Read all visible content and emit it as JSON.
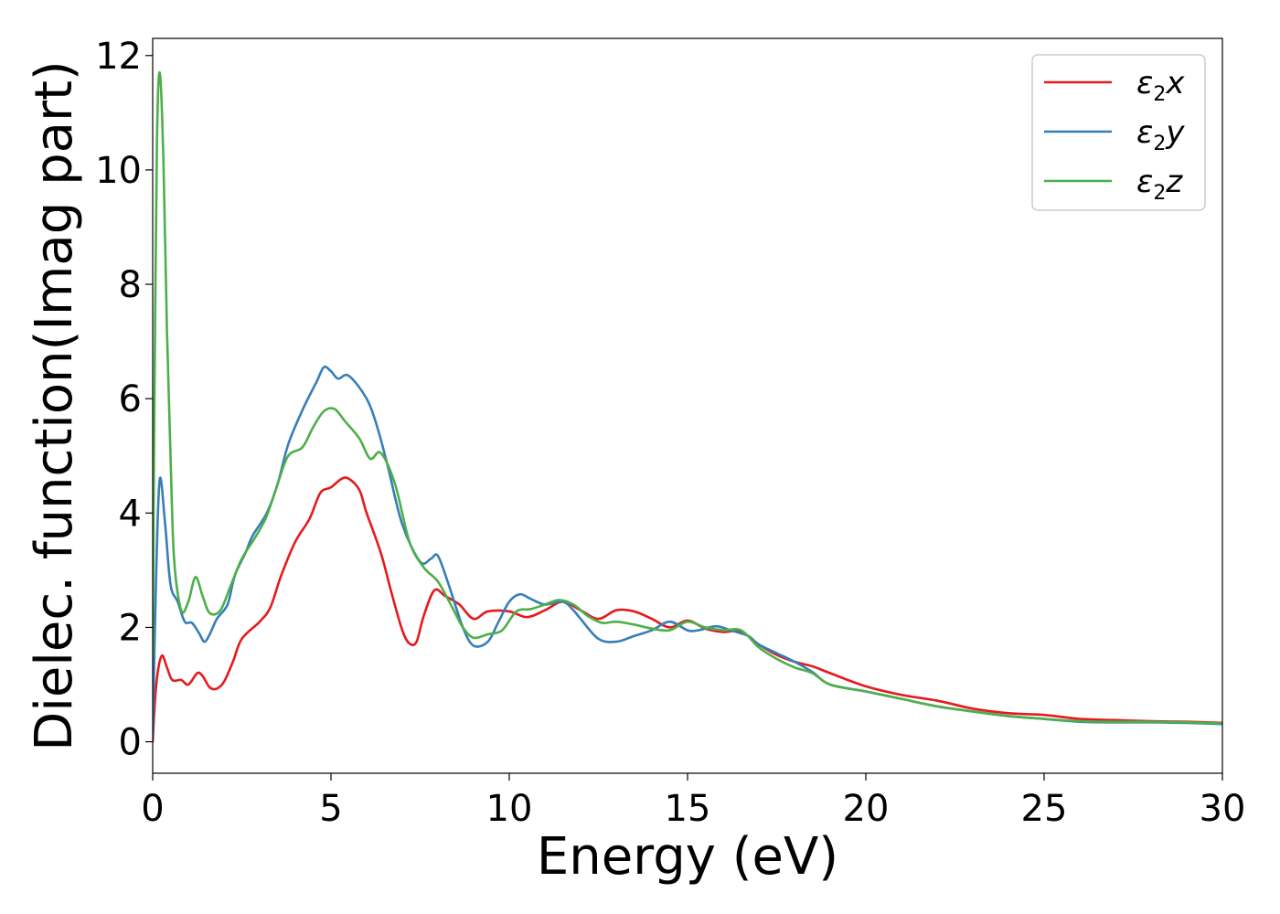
{
  "chart_data": {
    "type": "line",
    "title": "",
    "xlabel": "Energy (eV)",
    "ylabel": "Dielec. function(Imag part)",
    "xlim": [
      0,
      30
    ],
    "ylim": [
      -0.55,
      12.3
    ],
    "xticks": [
      0,
      5,
      10,
      15,
      20,
      25,
      30
    ],
    "xtick_labels": [
      "0",
      "5",
      "10",
      "15",
      "20",
      "25",
      "30"
    ],
    "yticks": [
      0,
      2,
      4,
      6,
      8,
      10,
      12
    ],
    "ytick_labels": [
      "0",
      "2",
      "4",
      "6",
      "8",
      "10",
      "12"
    ],
    "grid": false,
    "legend_position": "top-right",
    "series": [
      {
        "legend": {
          "sym": "ε",
          "sub": "2",
          "axis": "x"
        },
        "color": "#e41a1c",
        "points": [
          [
            0,
            0
          ],
          [
            0.1,
            1.0
          ],
          [
            0.25,
            1.5
          ],
          [
            0.4,
            1.3
          ],
          [
            0.55,
            1.08
          ],
          [
            0.8,
            1.08
          ],
          [
            1.0,
            1.0
          ],
          [
            1.25,
            1.2
          ],
          [
            1.4,
            1.15
          ],
          [
            1.6,
            0.95
          ],
          [
            1.8,
            0.93
          ],
          [
            2.0,
            1.05
          ],
          [
            2.25,
            1.4
          ],
          [
            2.5,
            1.8
          ],
          [
            3.0,
            2.1
          ],
          [
            3.3,
            2.35
          ],
          [
            3.6,
            2.9
          ],
          [
            4.0,
            3.5
          ],
          [
            4.4,
            3.9
          ],
          [
            4.7,
            4.35
          ],
          [
            5.0,
            4.45
          ],
          [
            5.3,
            4.6
          ],
          [
            5.5,
            4.6
          ],
          [
            5.8,
            4.4
          ],
          [
            6.0,
            4.0
          ],
          [
            6.4,
            3.3
          ],
          [
            6.7,
            2.6
          ],
          [
            7.0,
            1.95
          ],
          [
            7.2,
            1.72
          ],
          [
            7.4,
            1.75
          ],
          [
            7.6,
            2.2
          ],
          [
            7.9,
            2.65
          ],
          [
            8.2,
            2.55
          ],
          [
            8.6,
            2.4
          ],
          [
            9.0,
            2.15
          ],
          [
            9.4,
            2.28
          ],
          [
            10.0,
            2.28
          ],
          [
            10.5,
            2.18
          ],
          [
            11.0,
            2.3
          ],
          [
            11.5,
            2.45
          ],
          [
            12.0,
            2.3
          ],
          [
            12.5,
            2.15
          ],
          [
            13.0,
            2.3
          ],
          [
            13.5,
            2.28
          ],
          [
            14.0,
            2.15
          ],
          [
            14.5,
            2.0
          ],
          [
            15.0,
            2.12
          ],
          [
            15.5,
            1.98
          ],
          [
            16.0,
            1.92
          ],
          [
            16.5,
            1.93
          ],
          [
            17.0,
            1.7
          ],
          [
            17.5,
            1.52
          ],
          [
            18.0,
            1.4
          ],
          [
            18.5,
            1.32
          ],
          [
            19.0,
            1.2
          ],
          [
            20.0,
            0.97
          ],
          [
            21.0,
            0.82
          ],
          [
            22.0,
            0.72
          ],
          [
            23.0,
            0.58
          ],
          [
            24.0,
            0.5
          ],
          [
            25.0,
            0.47
          ],
          [
            26.0,
            0.4
          ],
          [
            27.0,
            0.38
          ],
          [
            28.0,
            0.36
          ],
          [
            29.0,
            0.35
          ],
          [
            30.0,
            0.33
          ]
        ]
      },
      {
        "legend": {
          "sym": "ε",
          "sub": "2",
          "axis": "y"
        },
        "color": "#377eb8",
        "points": [
          [
            0,
            0.1
          ],
          [
            0.1,
            3.0
          ],
          [
            0.2,
            4.6
          ],
          [
            0.35,
            3.8
          ],
          [
            0.5,
            2.75
          ],
          [
            0.7,
            2.45
          ],
          [
            0.9,
            2.1
          ],
          [
            1.1,
            2.08
          ],
          [
            1.3,
            1.9
          ],
          [
            1.45,
            1.75
          ],
          [
            1.6,
            1.88
          ],
          [
            1.8,
            2.15
          ],
          [
            2.1,
            2.4
          ],
          [
            2.3,
            2.9
          ],
          [
            2.6,
            3.3
          ],
          [
            2.8,
            3.6
          ],
          [
            3.2,
            4.0
          ],
          [
            3.5,
            4.5
          ],
          [
            3.8,
            5.2
          ],
          [
            4.2,
            5.8
          ],
          [
            4.6,
            6.3
          ],
          [
            4.8,
            6.55
          ],
          [
            5.0,
            6.48
          ],
          [
            5.2,
            6.35
          ],
          [
            5.5,
            6.4
          ],
          [
            6.0,
            6.0
          ],
          [
            6.3,
            5.5
          ],
          [
            6.6,
            4.8
          ],
          [
            7.0,
            3.8
          ],
          [
            7.5,
            3.15
          ],
          [
            7.8,
            3.2
          ],
          [
            8.0,
            3.25
          ],
          [
            8.3,
            2.75
          ],
          [
            8.7,
            2.0
          ],
          [
            9.0,
            1.68
          ],
          [
            9.4,
            1.75
          ],
          [
            9.7,
            2.1
          ],
          [
            10.0,
            2.45
          ],
          [
            10.3,
            2.58
          ],
          [
            10.6,
            2.5
          ],
          [
            11.0,
            2.4
          ],
          [
            11.5,
            2.45
          ],
          [
            11.8,
            2.3
          ],
          [
            12.0,
            2.15
          ],
          [
            12.5,
            1.8
          ],
          [
            13.0,
            1.75
          ],
          [
            13.5,
            1.85
          ],
          [
            14.0,
            1.95
          ],
          [
            14.5,
            2.1
          ],
          [
            15.0,
            1.95
          ],
          [
            15.3,
            1.95
          ],
          [
            15.8,
            2.02
          ],
          [
            16.2,
            1.95
          ],
          [
            16.7,
            1.85
          ],
          [
            17.0,
            1.7
          ],
          [
            17.5,
            1.55
          ],
          [
            18.0,
            1.4
          ],
          [
            18.5,
            1.22
          ],
          [
            19.0,
            1.0
          ],
          [
            20.0,
            0.88
          ],
          [
            21.0,
            0.75
          ],
          [
            22.0,
            0.62
          ],
          [
            23.0,
            0.53
          ],
          [
            24.0,
            0.45
          ],
          [
            25.0,
            0.4
          ],
          [
            26.0,
            0.35
          ],
          [
            27.0,
            0.34
          ],
          [
            28.0,
            0.34
          ],
          [
            29.0,
            0.33
          ],
          [
            30.0,
            0.31
          ]
        ]
      },
      {
        "legend": {
          "sym": "ε",
          "sub": "2",
          "axis": "z"
        },
        "color": "#4daf4a",
        "points": [
          [
            0,
            1.5
          ],
          [
            0.05,
            6.0
          ],
          [
            0.12,
            10.5
          ],
          [
            0.2,
            11.7
          ],
          [
            0.3,
            10.2
          ],
          [
            0.4,
            7.2
          ],
          [
            0.5,
            5.0
          ],
          [
            0.6,
            3.2
          ],
          [
            0.8,
            2.3
          ],
          [
            1.0,
            2.45
          ],
          [
            1.2,
            2.88
          ],
          [
            1.4,
            2.55
          ],
          [
            1.6,
            2.25
          ],
          [
            1.9,
            2.3
          ],
          [
            2.2,
            2.75
          ],
          [
            2.5,
            3.2
          ],
          [
            2.9,
            3.6
          ],
          [
            3.2,
            3.95
          ],
          [
            3.5,
            4.5
          ],
          [
            3.8,
            5.0
          ],
          [
            4.2,
            5.15
          ],
          [
            4.5,
            5.5
          ],
          [
            4.8,
            5.78
          ],
          [
            5.1,
            5.82
          ],
          [
            5.4,
            5.6
          ],
          [
            5.8,
            5.3
          ],
          [
            6.1,
            4.95
          ],
          [
            6.4,
            5.05
          ],
          [
            6.8,
            4.5
          ],
          [
            7.2,
            3.5
          ],
          [
            7.6,
            3.05
          ],
          [
            8.0,
            2.8
          ],
          [
            8.4,
            2.35
          ],
          [
            8.7,
            2.0
          ],
          [
            9.0,
            1.82
          ],
          [
            9.4,
            1.88
          ],
          [
            9.8,
            1.95
          ],
          [
            10.2,
            2.28
          ],
          [
            10.6,
            2.32
          ],
          [
            11.0,
            2.4
          ],
          [
            11.4,
            2.48
          ],
          [
            11.8,
            2.4
          ],
          [
            12.2,
            2.2
          ],
          [
            12.6,
            2.08
          ],
          [
            13.0,
            2.1
          ],
          [
            13.5,
            2.05
          ],
          [
            14.0,
            1.98
          ],
          [
            14.5,
            1.95
          ],
          [
            15.0,
            2.1
          ],
          [
            15.5,
            2.0
          ],
          [
            16.0,
            1.95
          ],
          [
            16.5,
            1.95
          ],
          [
            17.0,
            1.65
          ],
          [
            17.5,
            1.45
          ],
          [
            18.0,
            1.3
          ],
          [
            18.5,
            1.2
          ],
          [
            19.0,
            1.0
          ],
          [
            20.0,
            0.88
          ],
          [
            21.0,
            0.75
          ],
          [
            22.0,
            0.62
          ],
          [
            23.0,
            0.53
          ],
          [
            24.0,
            0.45
          ],
          [
            25.0,
            0.4
          ],
          [
            26.0,
            0.36
          ],
          [
            27.0,
            0.35
          ],
          [
            28.0,
            0.35
          ],
          [
            29.0,
            0.34
          ],
          [
            30.0,
            0.32
          ]
        ]
      }
    ]
  }
}
